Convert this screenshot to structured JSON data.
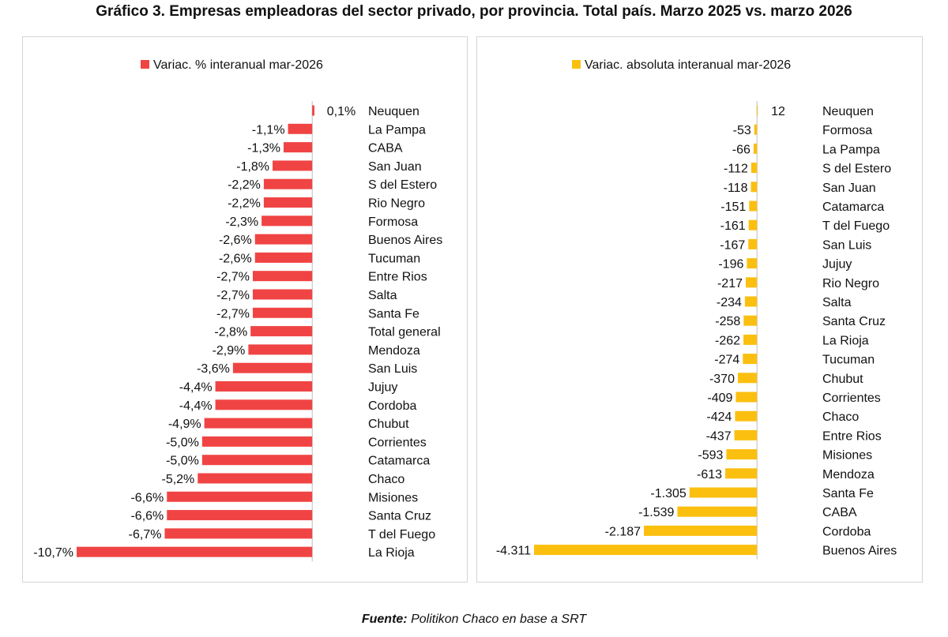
{
  "title": "Gráfico 3. Empresas empleadoras del sector privado, por provincia. Total país. Marzo 2025 vs. marzo 2026",
  "source": {
    "label": "Fuente:",
    "text": "Politikon Chaco en base a SRT"
  },
  "chart_data": [
    {
      "type": "bar",
      "orientation": "horizontal",
      "legend": "Variac. % interanual mar-2026",
      "color": "#f04444",
      "categories": [
        "Neuquen",
        "La Pampa",
        "CABA",
        "San Juan",
        "S del Estero",
        "Rio Negro",
        "Formosa",
        "Buenos Aires",
        "Tucuman",
        "Entre Rios",
        "Salta",
        "Santa Fe",
        "Total general",
        "Mendoza",
        "San Luis",
        "Jujuy",
        "Cordoba",
        "Chubut",
        "Corrientes",
        "Catamarca",
        "Chaco",
        "Misiones",
        "Santa Cruz",
        "T del Fuego",
        "La Rioja"
      ],
      "values": [
        0.1,
        -1.1,
        -1.3,
        -1.8,
        -2.2,
        -2.2,
        -2.3,
        -2.6,
        -2.6,
        -2.7,
        -2.7,
        -2.7,
        -2.8,
        -2.9,
        -3.6,
        -4.4,
        -4.4,
        -4.9,
        -5.0,
        -5.0,
        -5.2,
        -6.6,
        -6.6,
        -6.7,
        -10.7
      ],
      "labels": [
        "0,1%",
        "-1,1%",
        "-1,3%",
        "-1,8%",
        "-2,2%",
        "-2,2%",
        "-2,3%",
        "-2,6%",
        "-2,6%",
        "-2,7%",
        "-2,7%",
        "-2,7%",
        "-2,8%",
        "-2,9%",
        "-3,6%",
        "-4,4%",
        "-4,4%",
        "-4,9%",
        "-5,0%",
        "-5,0%",
        "-5,2%",
        "-6,6%",
        "-6,6%",
        "-6,7%",
        "-10,7%"
      ],
      "xlim": [
        -10.7,
        0.1
      ]
    },
    {
      "type": "bar",
      "orientation": "horizontal",
      "legend": "Variac. absoluta interanual mar-2026",
      "color": "#fbbf0f",
      "categories": [
        "Neuquen",
        "Formosa",
        "La Pampa",
        "S del Estero",
        "San Juan",
        "Catamarca",
        "T del Fuego",
        "San Luis",
        "Jujuy",
        "Rio Negro",
        "Salta",
        "Santa Cruz",
        "La Rioja",
        "Tucuman",
        "Chubut",
        "Corrientes",
        "Chaco",
        "Entre Rios",
        "Misiones",
        "Mendoza",
        "Santa Fe",
        "CABA",
        "Cordoba",
        "Buenos Aires"
      ],
      "values": [
        12,
        -53,
        -66,
        -112,
        -118,
        -151,
        -161,
        -167,
        -196,
        -217,
        -234,
        -258,
        -262,
        -274,
        -370,
        -409,
        -424,
        -437,
        -593,
        -613,
        -1305,
        -1539,
        -2187,
        -4311
      ],
      "labels": [
        "12",
        "-53",
        "-66",
        "-112",
        "-118",
        "-151",
        "-161",
        "-167",
        "-196",
        "-217",
        "-234",
        "-258",
        "-262",
        "-274",
        "-370",
        "-409",
        "-424",
        "-437",
        "-593",
        "-613",
        "-1.305",
        "-1.539",
        "-2.187",
        "-4.311"
      ],
      "xlim": [
        -4311,
        12
      ]
    }
  ]
}
